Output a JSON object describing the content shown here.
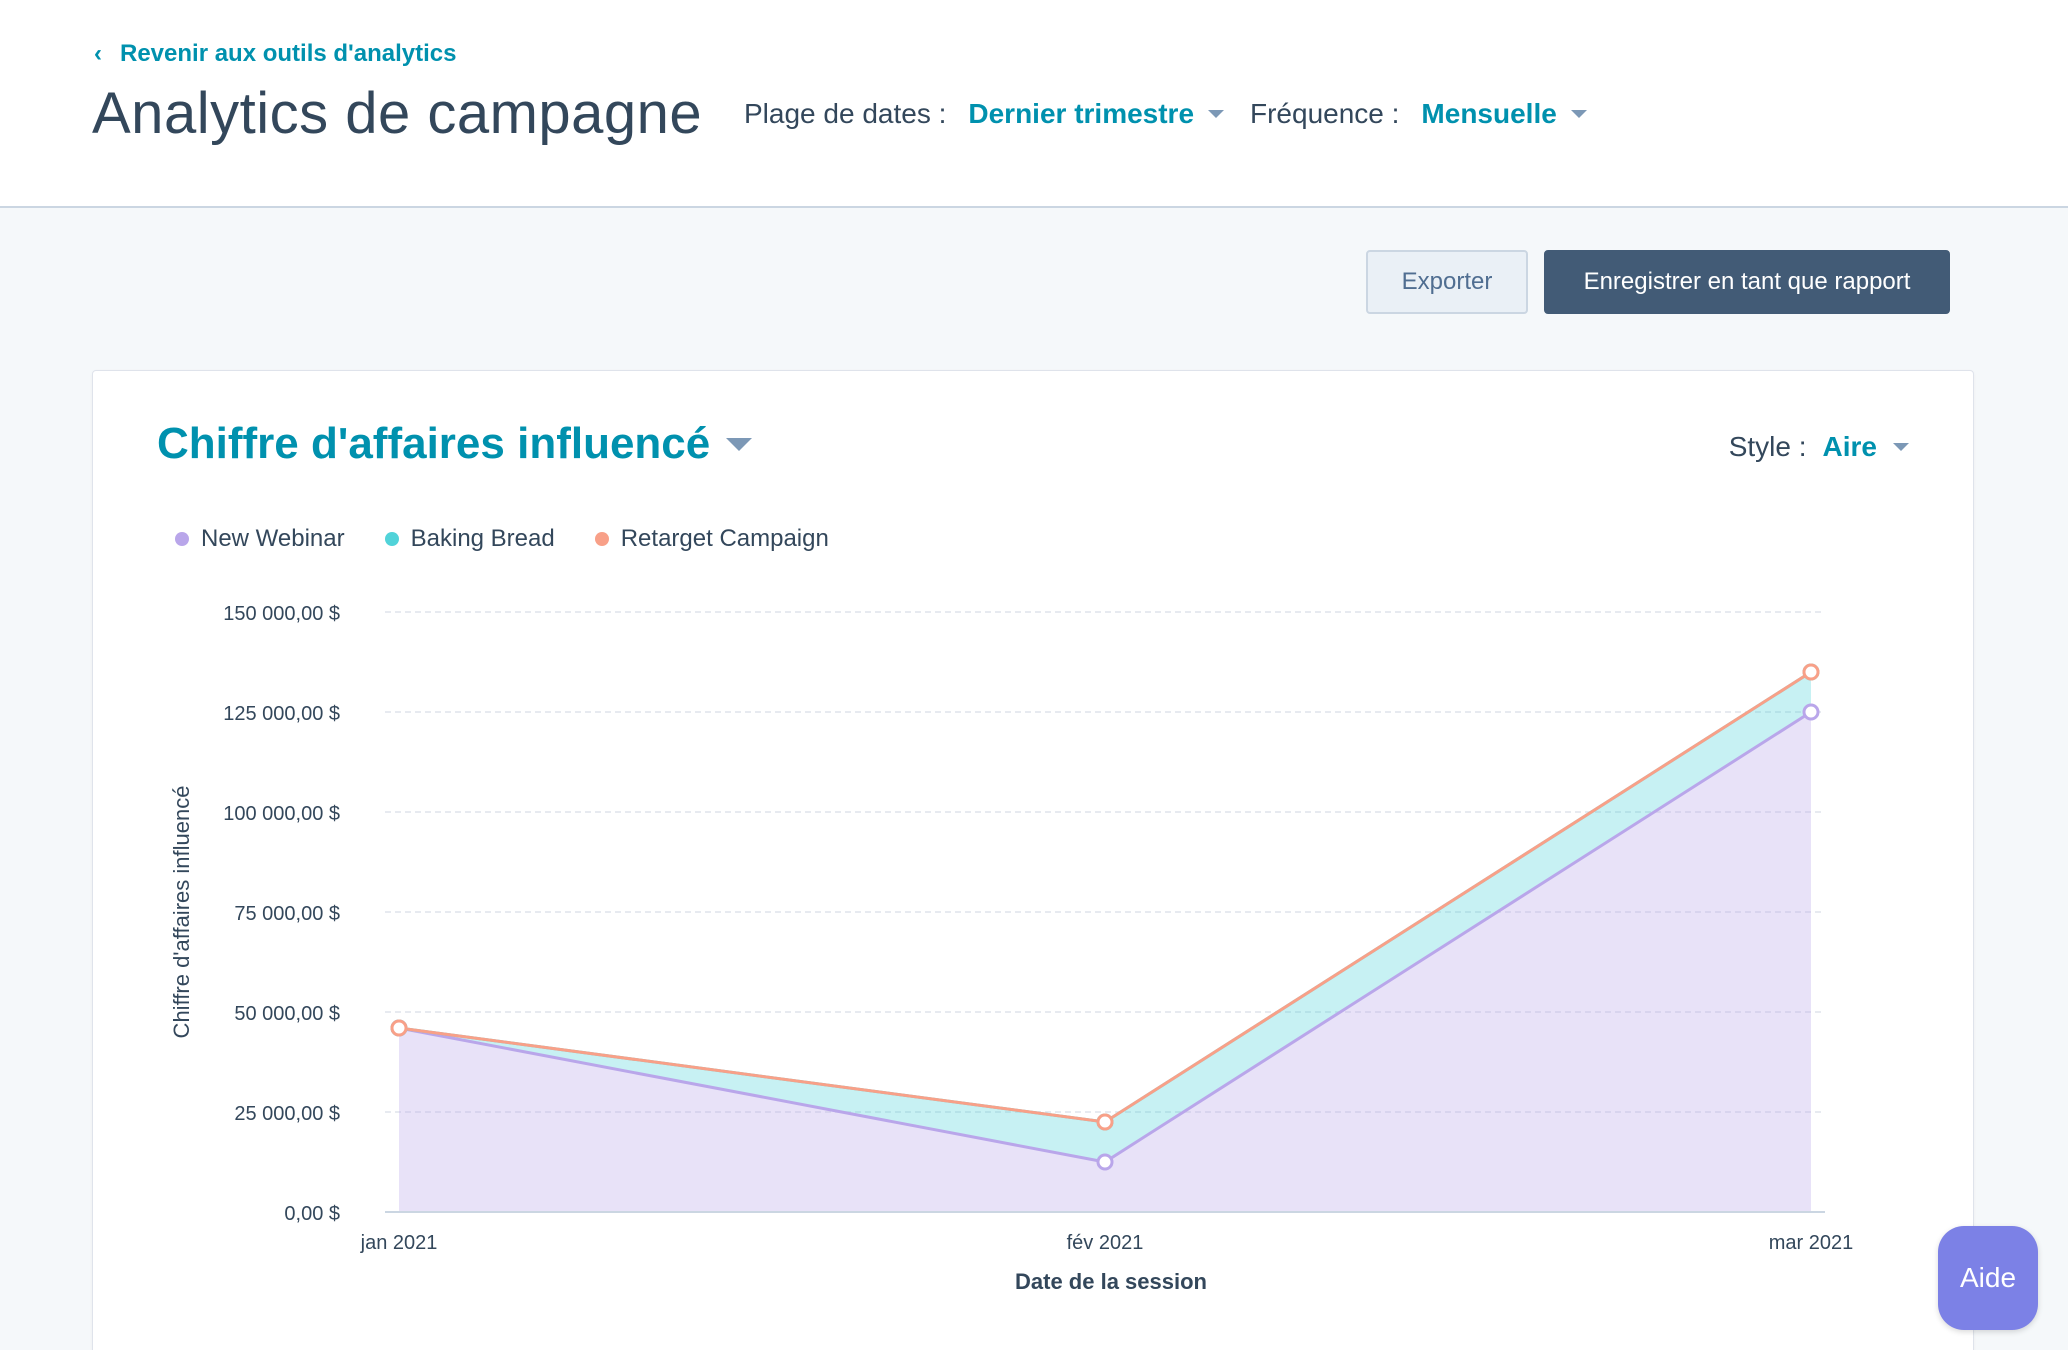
{
  "header": {
    "back_link": "Revenir aux outils d'analytics",
    "title": "Analytics de campagne",
    "date_range": {
      "label": "Plage de dates :",
      "value": "Dernier trimestre"
    },
    "frequency": {
      "label": "Fréquence :",
      "value": "Mensuelle"
    }
  },
  "toolbar": {
    "export_label": "Exporter",
    "save_label": "Enregistrer en tant que rapport"
  },
  "card": {
    "title": "Chiffre d'affaires influencé",
    "style_label": "Style :",
    "style_value": "Aire"
  },
  "help": {
    "label": "Aide"
  },
  "colors": {
    "accent": "#0091ae",
    "new_webinar": "#b9a6ea",
    "baking_bread": "#51d3d9",
    "retarget_campaign": "#f8a088"
  },
  "chart_data": {
    "type": "area",
    "title": "",
    "xlabel": "Date de la session",
    "ylabel": "Chiffre d'affaires influencé",
    "x": [
      "jan 2021",
      "fév 2021",
      "mar 2021"
    ],
    "ylim": [
      0,
      150000
    ],
    "y_ticks": [
      {
        "value": 0,
        "label": "0,00 $"
      },
      {
        "value": 25000,
        "label": "25 000,00 $"
      },
      {
        "value": 50000,
        "label": "50 000,00 $"
      },
      {
        "value": 75000,
        "label": "75 000,00 $"
      },
      {
        "value": 100000,
        "label": "100 000,00 $"
      },
      {
        "value": 125000,
        "label": "125 000,00 $"
      },
      {
        "value": 150000,
        "label": "150 000,00 $"
      }
    ],
    "grid": true,
    "legend_position": "top-left",
    "series": [
      {
        "name": "New Webinar",
        "values": [
          46000,
          12500,
          125000
        ],
        "color": "#b9a6ea"
      },
      {
        "name": "Baking Bread",
        "values": [
          0,
          10000,
          10000
        ],
        "color": "#51d3d9"
      },
      {
        "name": "Retarget Campaign",
        "values": [
          0,
          0,
          0
        ],
        "color": "#f8a088"
      }
    ]
  }
}
